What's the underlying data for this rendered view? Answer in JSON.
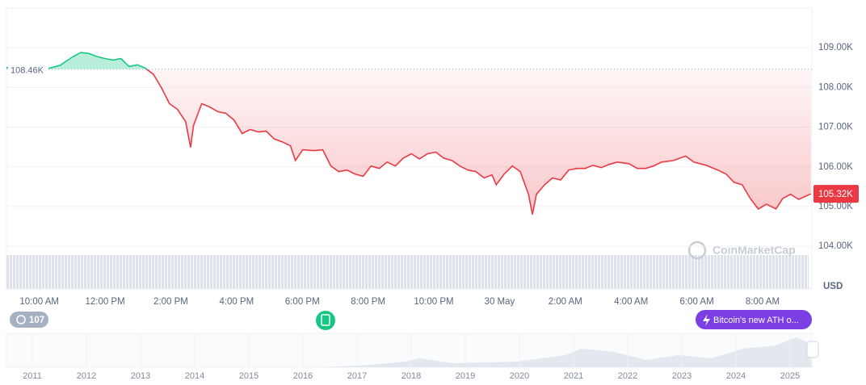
{
  "chart_data": {
    "type": "line",
    "x": [
      9.0,
      10.28,
      10.64,
      11.01,
      11.26,
      11.5,
      11.75,
      11.99,
      12.24,
      12.48,
      12.73,
      12.98,
      13.22,
      13.47,
      13.71,
      13.96,
      14.2,
      14.45,
      14.6,
      14.69,
      14.94,
      15.18,
      15.43,
      15.67,
      15.92,
      16.17,
      16.41,
      16.66,
      16.9,
      17.15,
      17.39,
      17.64,
      17.79,
      18.01,
      18.37,
      18.62,
      18.87,
      19.11,
      19.36,
      19.6,
      19.85,
      20.09,
      20.34,
      20.58,
      20.83,
      21.07,
      21.32,
      21.56,
      21.81,
      22.06,
      22.3,
      22.55,
      22.79,
      23.04,
      23.28,
      23.53,
      23.77,
      23.9,
      24.14,
      24.39,
      24.63,
      24.88,
      25.0,
      25.12,
      25.37,
      25.61,
      25.86,
      26.1,
      26.35,
      26.6,
      26.84,
      27.09,
      27.33,
      27.58,
      27.94,
      28.19,
      28.44,
      28.68,
      28.93,
      29.29,
      29.66,
      29.91,
      30.28,
      30.64,
      30.89,
      31.13,
      31.38,
      31.63,
      31.87,
      32.12,
      32.41,
      32.61,
      32.85,
      33.1,
      33.47
    ],
    "series": [
      {
        "color": "#ea3943",
        "values": [
          108500,
          108480,
          108560,
          108770,
          108880,
          108860,
          108780,
          108730,
          108690,
          108730,
          108530,
          108570,
          108490,
          108330,
          108000,
          107590,
          107450,
          107140,
          106490,
          107040,
          107590,
          107510,
          107390,
          107350,
          107180,
          106840,
          106940,
          106880,
          106900,
          106700,
          106630,
          106530,
          106160,
          106430,
          106410,
          106430,
          106020,
          105880,
          105920,
          105820,
          105760,
          106020,
          105960,
          106120,
          106020,
          106220,
          106330,
          106200,
          106330,
          106370,
          106220,
          106160,
          106020,
          105920,
          105880,
          105720,
          105800,
          105550,
          105820,
          106020,
          105880,
          105310,
          104800,
          105310,
          105550,
          105720,
          105670,
          105920,
          105960,
          105960,
          106040,
          105980,
          106060,
          106120,
          106080,
          105960,
          105960,
          106020,
          106120,
          106160,
          106270,
          106120,
          106040,
          105920,
          105820,
          105610,
          105550,
          105200,
          104940,
          105060,
          104940,
          105200,
          105310,
          105180,
          105320
        ]
      }
    ],
    "up_color": "#16c784",
    "baseline": {
      "value": 108460,
      "label": "108.46K"
    },
    "last_price": {
      "value": 105320,
      "label": "105.32K"
    },
    "ylim": [
      103900,
      110000
    ],
    "yticks": [
      {
        "value": 104000,
        "label": "104.00K"
      },
      {
        "value": 105000,
        "label": "105.00K"
      },
      {
        "value": 106000,
        "label": "106.00K"
      },
      {
        "value": 107000,
        "label": "107.00K"
      },
      {
        "value": 108000,
        "label": "108.00K"
      },
      {
        "value": 109000,
        "label": "109.00K"
      }
    ],
    "xlim": [
      9,
      33.5
    ],
    "xticks": [
      {
        "value": 10,
        "label": "10:00 AM"
      },
      {
        "value": 12,
        "label": "12:00 PM"
      },
      {
        "value": 14,
        "label": "2:00 PM"
      },
      {
        "value": 16,
        "label": "4:00 PM"
      },
      {
        "value": 18,
        "label": "6:00 PM"
      },
      {
        "value": 20,
        "label": "8:00 PM"
      },
      {
        "value": 22,
        "label": "10:00 PM"
      },
      {
        "value": 24,
        "label": "30 May"
      },
      {
        "value": 26,
        "label": "2:00 AM"
      },
      {
        "value": 28,
        "label": "4:00 AM"
      },
      {
        "value": 30,
        "label": "6:00 AM"
      },
      {
        "value": 32,
        "label": "8:00 AM"
      }
    ],
    "y_axis_label": "USD",
    "grid": true
  },
  "watermark": "CoinMarketCap",
  "badges": {
    "count": "107",
    "event": "Bitcoin's new ATH o..."
  },
  "navigator": {
    "years": [
      "2011",
      "2012",
      "2013",
      "2014",
      "2015",
      "2016",
      "2017",
      "2018",
      "2019",
      "2020",
      "2021",
      "2022",
      "2023",
      "2024",
      "2025"
    ]
  }
}
